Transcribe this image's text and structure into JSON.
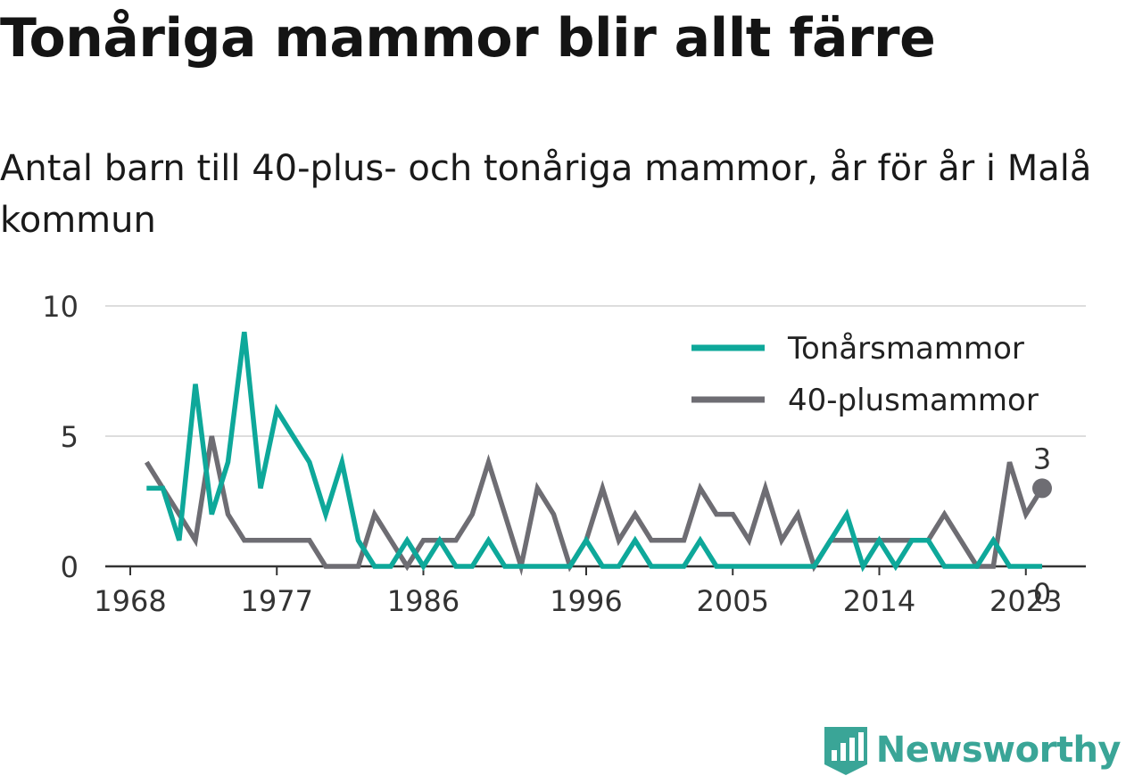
{
  "title": "Tonåriga mammor blir allt färre",
  "subtitle": "Antal barn till 40-plus- och tonåriga mammor, år för år i Malå kommun",
  "brand": {
    "name": "Newsworthy",
    "logo_icon": "bar-chart-badge-icon",
    "color": "#3aa597"
  },
  "chart_data": {
    "type": "line",
    "title": "Tonåriga mammor blir allt färre",
    "subtitle": "Antal barn till 40-plus- och tonåriga mammor, år för år i Malå kommun",
    "xlabel": "",
    "ylabel": "",
    "x": [
      1969,
      1970,
      1971,
      1972,
      1973,
      1974,
      1975,
      1976,
      1977,
      1978,
      1979,
      1980,
      1981,
      1982,
      1983,
      1984,
      1985,
      1986,
      1987,
      1988,
      1989,
      1990,
      1991,
      1992,
      1993,
      1994,
      1995,
      1996,
      1997,
      1998,
      1999,
      2000,
      2001,
      2002,
      2003,
      2004,
      2005,
      2006,
      2007,
      2008,
      2009,
      2010,
      2011,
      2012,
      2013,
      2014,
      2015,
      2016,
      2017,
      2018,
      2019,
      2020,
      2021,
      2022,
      2023,
      2024
    ],
    "xticks": [
      1968,
      1977,
      1986,
      1996,
      2005,
      2014,
      2023
    ],
    "xlim": [
      1968,
      2024
    ],
    "yticks": [
      0,
      5,
      10
    ],
    "ylim": [
      0,
      10
    ],
    "grid": true,
    "legend_position": "top-right",
    "series": [
      {
        "name": "Tonårsmammor",
        "color": "#0ea89a",
        "values": [
          3,
          3,
          1,
          7,
          2,
          4,
          9,
          3,
          6,
          5,
          4,
          2,
          4,
          1,
          0,
          0,
          1,
          0,
          1,
          0,
          0,
          1,
          0,
          0,
          0,
          0,
          0,
          1,
          0,
          0,
          1,
          0,
          0,
          0,
          1,
          0,
          0,
          0,
          0,
          0,
          0,
          0,
          1,
          2,
          0,
          1,
          0,
          1,
          1,
          0,
          0,
          0,
          1,
          0,
          0,
          0
        ],
        "end_label": "0"
      },
      {
        "name": "40-plusmammor",
        "color": "#6e6d73",
        "values": [
          4,
          3,
          2,
          1,
          5,
          2,
          1,
          1,
          1,
          1,
          1,
          0,
          0,
          0,
          2,
          1,
          0,
          1,
          1,
          1,
          2,
          4,
          2,
          0,
          3,
          2,
          0,
          1,
          3,
          1,
          2,
          1,
          1,
          1,
          3,
          2,
          2,
          1,
          3,
          1,
          2,
          0,
          1,
          1,
          1,
          1,
          1,
          1,
          1,
          2,
          1,
          0,
          0,
          4,
          2,
          3
        ],
        "end_label": "3"
      }
    ]
  }
}
